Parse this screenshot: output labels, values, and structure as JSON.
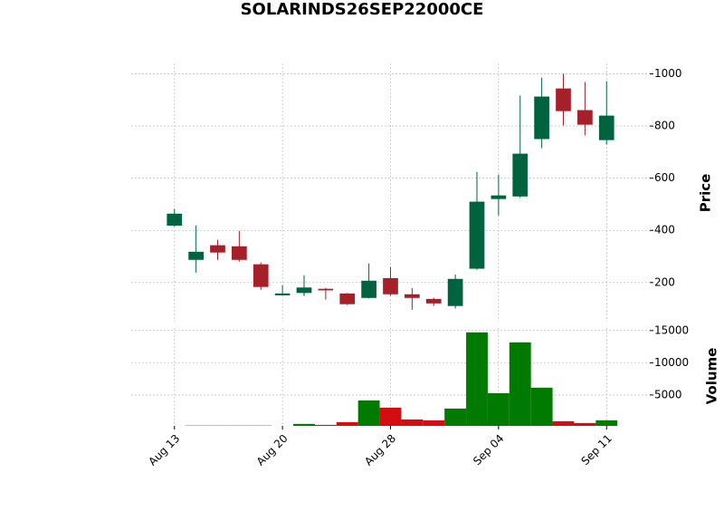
{
  "chart_data": {
    "type": "candlestick",
    "title": "SOLARINDS26SEP22000CE",
    "categories": [
      "Aug 13",
      null,
      null,
      null,
      null,
      "Aug 20",
      null,
      null,
      null,
      null,
      "Aug 28",
      null,
      null,
      null,
      null,
      "Sep 04",
      null,
      null,
      null,
      null,
      "Sep 11"
    ],
    "open": [
      418,
      287,
      343,
      339,
      270,
      151,
      160,
      176,
      158,
      141,
      217,
      155,
      137,
      110,
      253,
      520,
      530,
      750,
      944,
      861,
      746
    ],
    "high": [
      482,
      419,
      364,
      398,
      277,
      190,
      228,
      180,
      160,
      273,
      259,
      179,
      142,
      231,
      624,
      614,
      917,
      986,
      1000,
      969,
      972
    ],
    "low": [
      415,
      238,
      287,
      280,
      172,
      150,
      148,
      134,
      113,
      139,
      150,
      96,
      110,
      100,
      249,
      457,
      525,
      715,
      802,
      764,
      729
    ],
    "close": [
      464,
      318,
      315,
      287,
      183,
      158,
      181,
      170,
      117,
      207,
      155,
      141,
      120,
      214,
      510,
      534,
      694,
      913,
      857,
      805,
      840
    ],
    "up_color": "#006340",
    "down_color": "#a5212a",
    "ylabel": "Price",
    "xlim": [
      -2,
      22
    ],
    "ylim": [
      50,
      1040
    ],
    "yticks": [
      200,
      400,
      600,
      800,
      1000
    ],
    "grid": true,
    "volume": {
      "ylabel": "Volume",
      "values": [
        200,
        250,
        250,
        250,
        250,
        200,
        500,
        350,
        780,
        4150,
        3030,
        1200,
        1060,
        2890,
        14720,
        5280,
        13170,
        6130,
        920,
        640,
        1060
      ],
      "up_color": "#007a00",
      "down_color": "#d40d12",
      "ylim": [
        200,
        15400
      ],
      "yticks": [
        5000,
        10000,
        15000
      ]
    }
  }
}
